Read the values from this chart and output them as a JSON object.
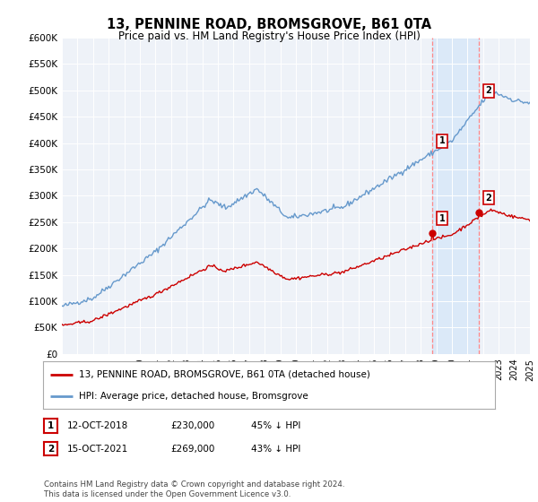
{
  "title": "13, PENNINE ROAD, BROMSGROVE, B61 0TA",
  "subtitle": "Price paid vs. HM Land Registry's House Price Index (HPI)",
  "ylabel_ticks": [
    "£0",
    "£50K",
    "£100K",
    "£150K",
    "£200K",
    "£250K",
    "£300K",
    "£350K",
    "£400K",
    "£450K",
    "£500K",
    "£550K",
    "£600K"
  ],
  "ytick_values": [
    0,
    50000,
    100000,
    150000,
    200000,
    250000,
    300000,
    350000,
    400000,
    450000,
    500000,
    550000,
    600000
  ],
  "hpi_color": "#6699cc",
  "price_color": "#cc0000",
  "dashed_color": "#ff8888",
  "legend_label_price": "13, PENNINE ROAD, BROMSGROVE, B61 0TA (detached house)",
  "legend_label_hpi": "HPI: Average price, detached house, Bromsgrove",
  "table_row1": [
    "1",
    "12-OCT-2018",
    "£230,000",
    "45% ↓ HPI"
  ],
  "table_row2": [
    "2",
    "15-OCT-2021",
    "£269,000",
    "43% ↓ HPI"
  ],
  "footnote": "Contains HM Land Registry data © Crown copyright and database right 2024.\nThis data is licensed under the Open Government Licence v3.0.",
  "bg_color": "#ffffff",
  "plot_bg_color": "#eef2f8",
  "shaded_region_color": "#d8e8f8"
}
